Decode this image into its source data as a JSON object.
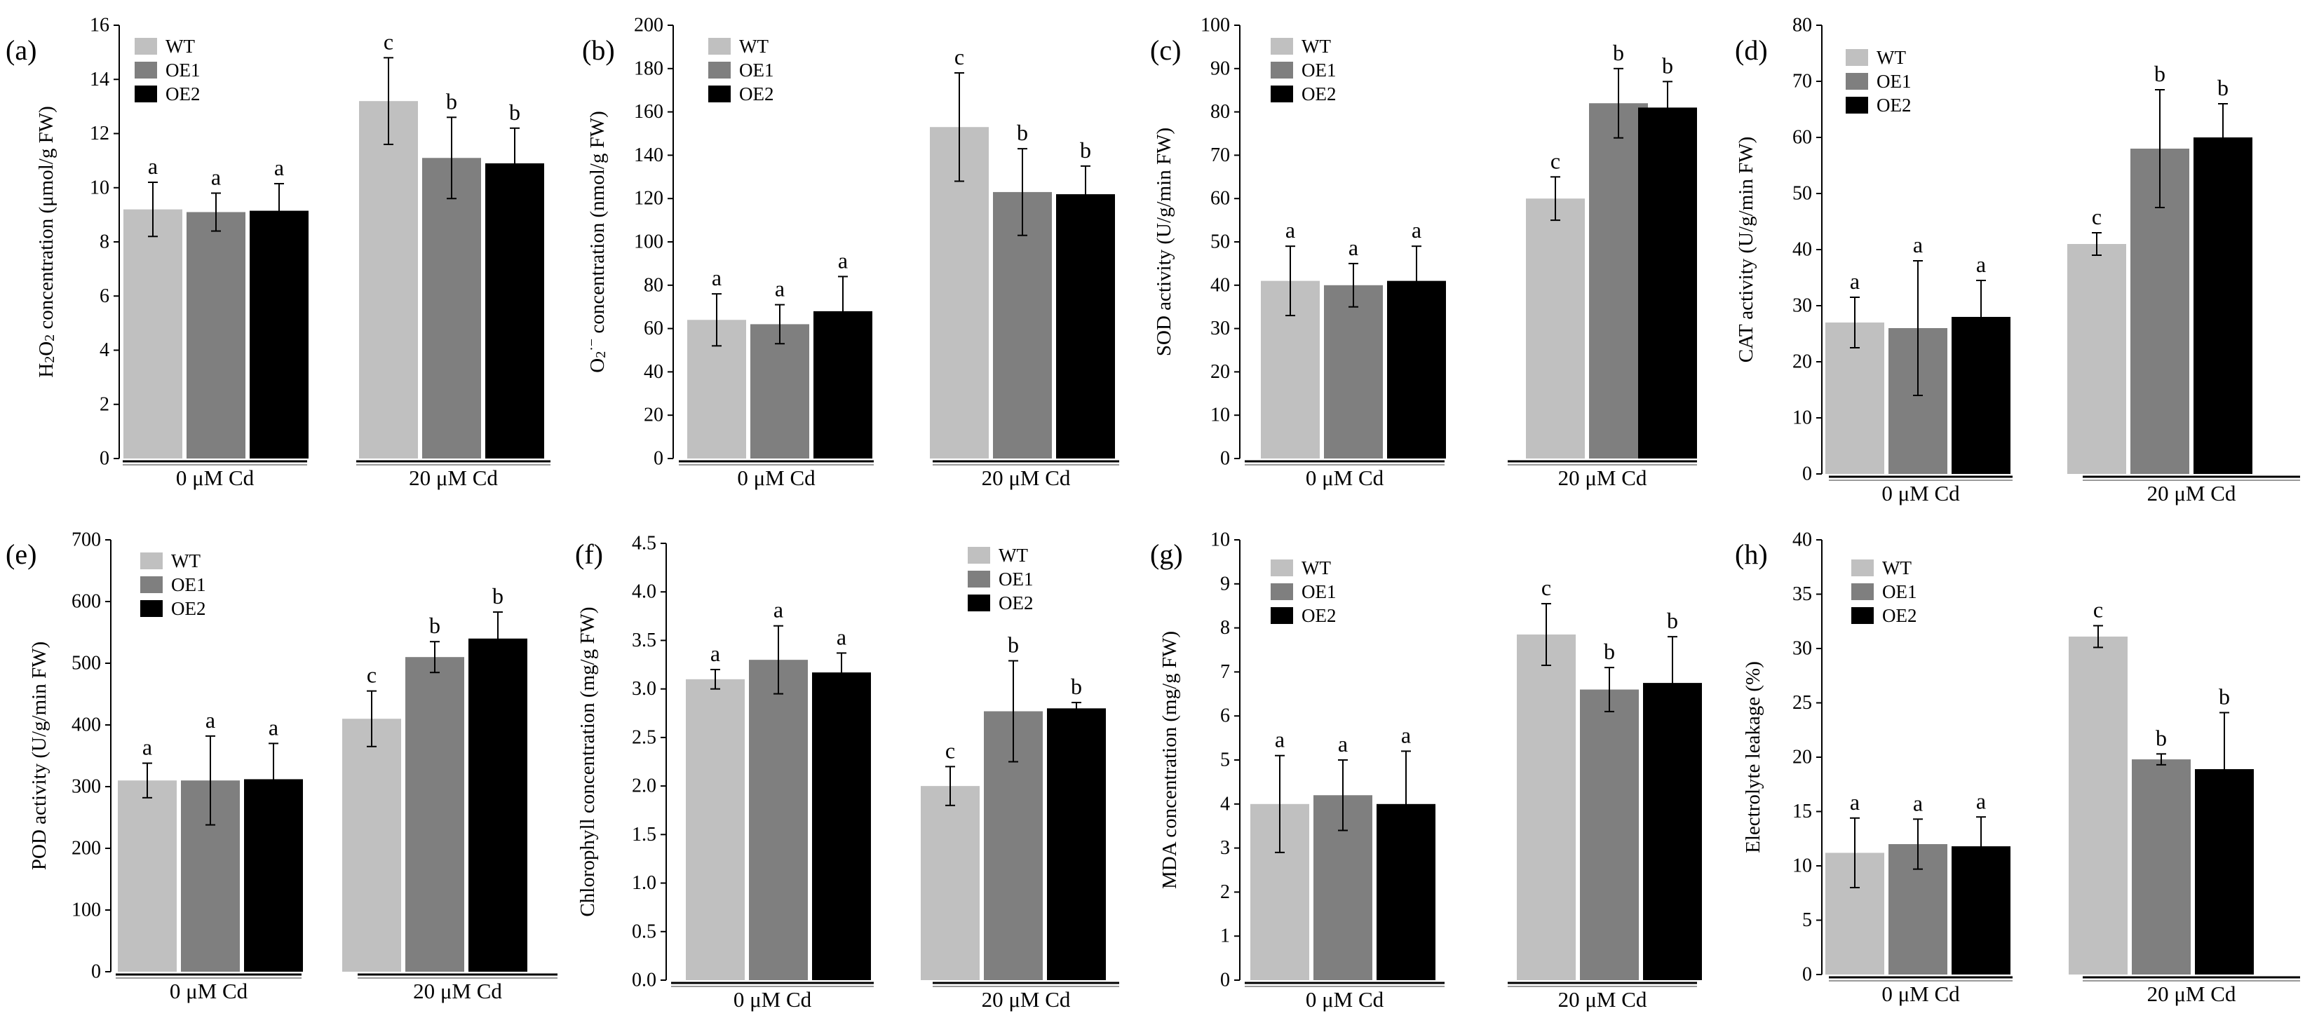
{
  "colors": {
    "WT": "#c0c0c0",
    "OE1": "#7f7f7f",
    "OE2": "#000000",
    "axis": "#000000"
  },
  "chart_data": [
    {
      "type": "bar",
      "panel": "(a)",
      "ylabel_parts": [
        {
          "t": "H"
        },
        {
          "t": "2",
          "s": "sub"
        },
        {
          "t": "O"
        },
        {
          "t": "2",
          "s": "sub"
        },
        {
          "t": " concentration (μmol/g  FW)"
        }
      ],
      "ylim": [
        0,
        16
      ],
      "yticks": [
        0,
        2,
        4,
        6,
        8,
        10,
        12,
        14,
        16
      ],
      "groups": [
        "0 μM Cd",
        "20 μM Cd"
      ],
      "series": [
        {
          "name": "WT",
          "values": [
            9.2,
            13.2
          ],
          "errors": [
            1.0,
            1.6
          ],
          "letters": [
            "a",
            "c"
          ]
        },
        {
          "name": "OE1",
          "values": [
            9.1,
            11.1
          ],
          "errors": [
            0.7,
            1.5
          ],
          "letters": [
            "a",
            "b"
          ]
        },
        {
          "name": "OE2",
          "values": [
            9.15,
            10.9
          ],
          "errors": [
            1.0,
            1.3
          ],
          "letters": [
            "a",
            "b"
          ]
        }
      ]
    },
    {
      "type": "bar",
      "panel": "(b)",
      "ylabel_parts": [
        {
          "t": "O"
        },
        {
          "t": "2",
          "s": "sub"
        },
        {
          "t": "·−",
          "s": "sup"
        },
        {
          "t": " concentration (nmol/g FW)"
        }
      ],
      "ylim": [
        0,
        200
      ],
      "yticks": [
        0,
        20,
        40,
        60,
        80,
        100,
        120,
        140,
        160,
        180,
        200
      ],
      "groups": [
        "0 μM Cd",
        "20 μM Cd"
      ],
      "series": [
        {
          "name": "WT",
          "values": [
            64,
            153
          ],
          "errors": [
            12,
            25
          ],
          "letters": [
            "a",
            "c"
          ]
        },
        {
          "name": "OE1",
          "values": [
            62,
            123
          ],
          "errors": [
            9,
            20
          ],
          "letters": [
            "a",
            "b"
          ]
        },
        {
          "name": "OE2",
          "values": [
            68,
            122
          ],
          "errors": [
            16,
            13
          ],
          "letters": [
            "a",
            "b"
          ]
        }
      ]
    },
    {
      "type": "bar",
      "panel": "(c)",
      "ylabel_parts": [
        {
          "t": "SOD activity (U/g/min FW)"
        }
      ],
      "ylim": [
        0,
        100
      ],
      "yticks": [
        0,
        10,
        20,
        30,
        40,
        50,
        60,
        70,
        80,
        90,
        100
      ],
      "groups": [
        "0 μM Cd",
        "20 μM Cd"
      ],
      "series": [
        {
          "name": "WT",
          "values": [
            41,
            60
          ],
          "errors": [
            8,
            5
          ],
          "letters": [
            "a",
            "c"
          ]
        },
        {
          "name": "OE1",
          "values": [
            40,
            82
          ],
          "errors": [
            5,
            8
          ],
          "letters": [
            "a",
            "b"
          ]
        },
        {
          "name": "OE2",
          "values": [
            41,
            81
          ],
          "errors": [
            8,
            6
          ],
          "letters": [
            "a",
            "b"
          ]
        }
      ]
    },
    {
      "type": "bar",
      "panel": "(d)",
      "ylabel_parts": [
        {
          "t": "CAT activity (U/g/min FW)"
        }
      ],
      "ylim": [
        0,
        80
      ],
      "yticks": [
        0,
        10,
        20,
        30,
        40,
        50,
        60,
        70,
        80
      ],
      "groups": [
        "0 μM Cd",
        "20 μM Cd"
      ],
      "series": [
        {
          "name": "WT",
          "values": [
            27,
            41
          ],
          "errors": [
            4.5,
            2
          ],
          "letters": [
            "a",
            "c"
          ]
        },
        {
          "name": "OE1",
          "values": [
            26,
            58
          ],
          "errors": [
            12,
            10.5
          ],
          "letters": [
            "a",
            "b"
          ]
        },
        {
          "name": "OE2",
          "values": [
            28,
            60
          ],
          "errors": [
            6.5,
            6
          ],
          "letters": [
            "a",
            "b"
          ]
        }
      ]
    },
    {
      "type": "bar",
      "panel": "(e)",
      "ylabel_parts": [
        {
          "t": "POD activity (U/g/min FW)"
        }
      ],
      "ylim": [
        0,
        700
      ],
      "yticks": [
        0,
        100,
        200,
        300,
        400,
        500,
        600,
        700
      ],
      "groups": [
        "0 μM Cd",
        "20 μM Cd"
      ],
      "series": [
        {
          "name": "WT",
          "values": [
            310,
            410
          ],
          "errors": [
            28,
            45
          ],
          "letters": [
            "a",
            "c"
          ]
        },
        {
          "name": "OE1",
          "values": [
            310,
            510
          ],
          "errors": [
            72,
            25
          ],
          "letters": [
            "a",
            "b"
          ]
        },
        {
          "name": "OE2",
          "values": [
            312,
            540
          ],
          "errors": [
            58,
            43
          ],
          "letters": [
            "a",
            "b"
          ]
        }
      ]
    },
    {
      "type": "bar",
      "panel": "(f)",
      "ylabel_parts": [
        {
          "t": "Chlorophyll concentration (mg/g FW)"
        }
      ],
      "ylim": [
        0,
        4.5
      ],
      "yticks": [
        0.0,
        0.5,
        1.0,
        1.5,
        2.0,
        2.5,
        3.0,
        3.5,
        4.0,
        4.5
      ],
      "tick_decimals": 1,
      "groups": [
        "0 μM Cd",
        "20 μM Cd"
      ],
      "series": [
        {
          "name": "WT",
          "values": [
            3.1,
            2.0
          ],
          "errors": [
            0.1,
            0.2
          ],
          "letters": [
            "a",
            "c"
          ]
        },
        {
          "name": "OE1",
          "values": [
            3.3,
            2.77
          ],
          "errors": [
            0.35,
            0.52
          ],
          "letters": [
            "a",
            "b"
          ]
        },
        {
          "name": "OE2",
          "values": [
            3.17,
            2.8
          ],
          "errors": [
            0.2,
            0.06
          ],
          "letters": [
            "a",
            "b"
          ]
        }
      ]
    },
    {
      "type": "bar",
      "panel": "(g)",
      "ylabel_parts": [
        {
          "t": "MDA concentration (mg/g FW)"
        }
      ],
      "ylim": [
        0,
        10
      ],
      "yticks": [
        0,
        1,
        2,
        3,
        4,
        5,
        6,
        7,
        8,
        9,
        10
      ],
      "groups": [
        "0 μM Cd",
        "20 μM Cd"
      ],
      "series": [
        {
          "name": "WT",
          "values": [
            4.0,
            7.85
          ],
          "errors": [
            1.1,
            0.7
          ],
          "letters": [
            "a",
            "c"
          ]
        },
        {
          "name": "OE1",
          "values": [
            4.2,
            6.6
          ],
          "errors": [
            0.8,
            0.5
          ],
          "letters": [
            "a",
            "b"
          ]
        },
        {
          "name": "OE2",
          "values": [
            4.0,
            6.75
          ],
          "errors": [
            1.2,
            1.05
          ],
          "letters": [
            "a",
            "b"
          ]
        }
      ]
    },
    {
      "type": "bar",
      "panel": "(h)",
      "ylabel_parts": [
        {
          "t": "Electrolyte leakage (%)"
        }
      ],
      "ylim": [
        0,
        40
      ],
      "yticks": [
        0,
        5,
        10,
        15,
        20,
        25,
        30,
        35,
        40
      ],
      "groups": [
        "0 μM Cd",
        "20 μM Cd"
      ],
      "series": [
        {
          "name": "WT",
          "values": [
            11.2,
            31.1
          ],
          "errors": [
            3.2,
            1.0
          ],
          "letters": [
            "a",
            "c"
          ]
        },
        {
          "name": "OE1",
          "values": [
            12.0,
            19.8
          ],
          "errors": [
            2.3,
            0.5
          ],
          "letters": [
            "a",
            "b"
          ]
        },
        {
          "name": "OE2",
          "values": [
            11.8,
            18.9
          ],
          "errors": [
            2.7,
            5.2
          ],
          "letters": [
            "a",
            "b"
          ]
        }
      ]
    }
  ]
}
